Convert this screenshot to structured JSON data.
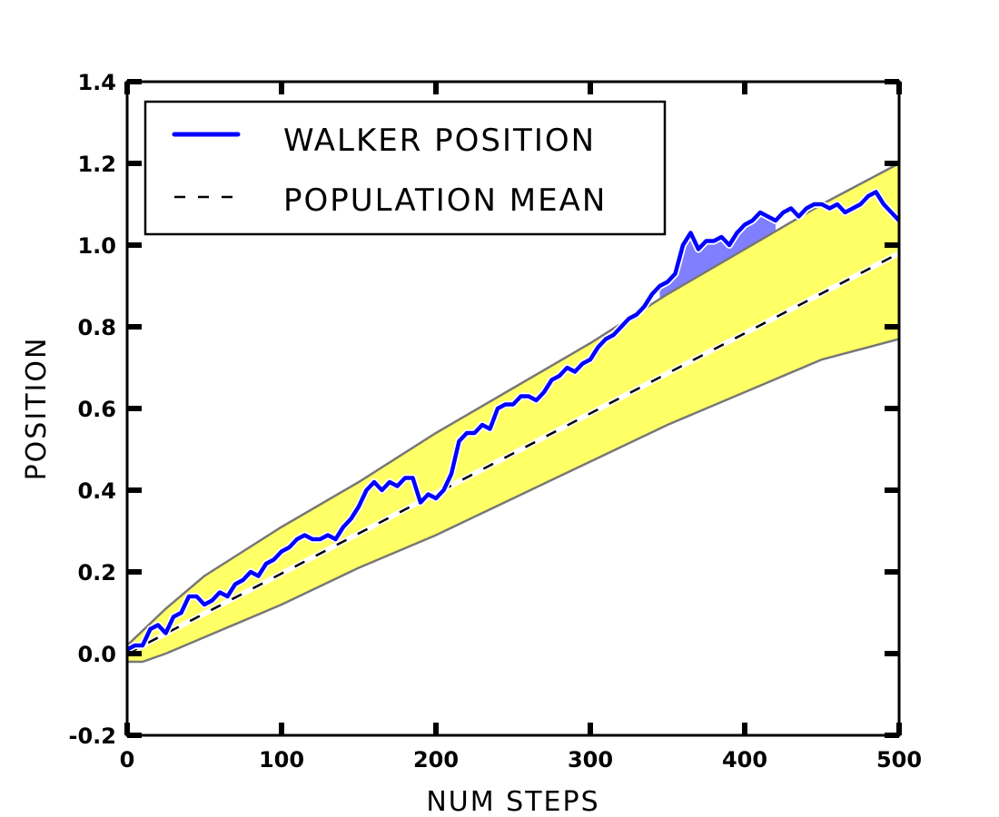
{
  "chart_data": {
    "type": "line",
    "title": "",
    "xlabel": "NUM STEPS",
    "ylabel": "POSITION",
    "xlim": [
      0,
      500
    ],
    "ylim": [
      -0.2,
      1.4
    ],
    "xticks": [
      0,
      100,
      200,
      300,
      400,
      500
    ],
    "xtick_labels": [
      "0",
      "100",
      "200",
      "300",
      "400",
      "500"
    ],
    "yticks": [
      -0.2,
      0.0,
      0.2,
      0.4,
      0.6,
      0.8,
      1.0,
      1.2,
      1.4
    ],
    "ytick_labels": [
      "-0.2",
      "0.0",
      "0.2",
      "0.4",
      "0.6",
      "0.8",
      "1.0",
      "1.2",
      "1.4"
    ],
    "grid": false,
    "legend_position": "top-left",
    "series": [
      {
        "name": "WALKER POSITION",
        "style": "solid",
        "color": "#0000ff",
        "x": [
          0,
          5,
          10,
          15,
          20,
          25,
          30,
          35,
          40,
          45,
          50,
          55,
          60,
          65,
          70,
          75,
          80,
          85,
          90,
          95,
          100,
          105,
          110,
          115,
          120,
          125,
          130,
          135,
          140,
          145,
          150,
          155,
          160,
          165,
          170,
          175,
          180,
          185,
          190,
          195,
          200,
          205,
          210,
          215,
          220,
          225,
          230,
          235,
          240,
          245,
          250,
          255,
          260,
          265,
          270,
          275,
          280,
          285,
          290,
          295,
          300,
          305,
          310,
          315,
          320,
          325,
          330,
          335,
          340,
          345,
          350,
          355,
          360,
          365,
          370,
          375,
          380,
          385,
          390,
          395,
          400,
          405,
          410,
          415,
          420,
          425,
          430,
          435,
          440,
          445,
          450,
          455,
          460,
          465,
          470,
          475,
          480,
          485,
          490,
          495,
          500
        ],
        "values": [
          0.01,
          0.02,
          0.02,
          0.06,
          0.07,
          0.05,
          0.09,
          0.1,
          0.14,
          0.14,
          0.12,
          0.13,
          0.15,
          0.14,
          0.17,
          0.18,
          0.2,
          0.19,
          0.22,
          0.23,
          0.25,
          0.26,
          0.28,
          0.29,
          0.28,
          0.28,
          0.29,
          0.28,
          0.31,
          0.33,
          0.36,
          0.4,
          0.42,
          0.4,
          0.42,
          0.41,
          0.43,
          0.43,
          0.37,
          0.39,
          0.38,
          0.4,
          0.44,
          0.52,
          0.54,
          0.54,
          0.56,
          0.55,
          0.6,
          0.61,
          0.61,
          0.63,
          0.63,
          0.62,
          0.64,
          0.67,
          0.68,
          0.7,
          0.69,
          0.71,
          0.72,
          0.75,
          0.77,
          0.78,
          0.8,
          0.82,
          0.83,
          0.85,
          0.88,
          0.9,
          0.91,
          0.93,
          1.0,
          1.03,
          0.99,
          1.01,
          1.01,
          1.02,
          1.0,
          1.03,
          1.05,
          1.06,
          1.08,
          1.07,
          1.06,
          1.08,
          1.09,
          1.07,
          1.09,
          1.1,
          1.1,
          1.09,
          1.1,
          1.08,
          1.09,
          1.1,
          1.12,
          1.13,
          1.1,
          1.08,
          1.06
        ]
      },
      {
        "name": "POPULATION MEAN",
        "style": "dashed",
        "color": "#000000",
        "x": [
          0,
          500
        ],
        "values": [
          0.0,
          0.98
        ]
      }
    ],
    "band": {
      "color": "#ffff66",
      "edge_color": "#777777",
      "upper": [
        [
          0,
          0.02
        ],
        [
          25,
          0.11
        ],
        [
          50,
          0.19
        ],
        [
          100,
          0.31
        ],
        [
          150,
          0.42
        ],
        [
          200,
          0.54
        ],
        [
          250,
          0.65
        ],
        [
          300,
          0.76
        ],
        [
          350,
          0.88
        ],
        [
          400,
          0.99
        ],
        [
          450,
          1.1
        ],
        [
          500,
          1.2
        ]
      ],
      "lower": [
        [
          0,
          -0.02
        ],
        [
          10,
          -0.02
        ],
        [
          25,
          0.0
        ],
        [
          50,
          0.04
        ],
        [
          100,
          0.12
        ],
        [
          150,
          0.21
        ],
        [
          200,
          0.29
        ],
        [
          250,
          0.38
        ],
        [
          300,
          0.47
        ],
        [
          350,
          0.56
        ],
        [
          400,
          0.64
        ],
        [
          450,
          0.72
        ],
        [
          500,
          0.77
        ]
      ]
    },
    "exceed_fill_color": "#7f7fff"
  }
}
